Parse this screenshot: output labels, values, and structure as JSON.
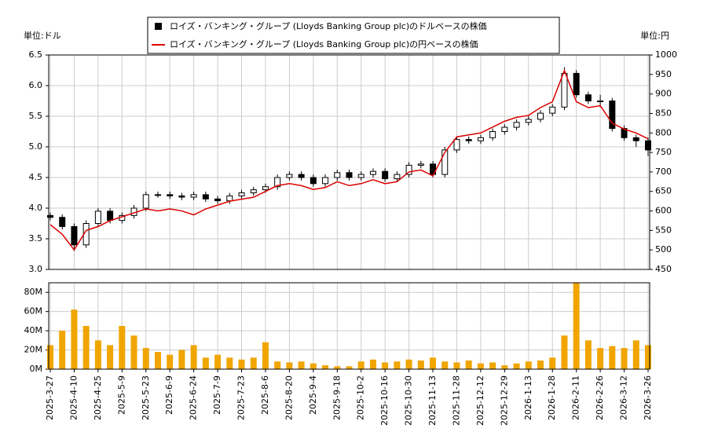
{
  "chart_data": [
    {
      "type": "candlestick",
      "legend": "top",
      "grid": true,
      "y_unit": "単位:ドル",
      "y2_unit": "単位:円",
      "x": [
        "2025-3-27",
        "2025-4-3",
        "2025-4-10",
        "2025-4-17",
        "2025-4-25",
        "2025-5-2",
        "2025-5-9",
        "2025-5-16",
        "2025-5-23",
        "2025-6-2",
        "2025-6-9",
        "2025-6-16",
        "2025-6-24",
        "2025-7-1",
        "2025-7-9",
        "2025-7-16",
        "2025-7-23",
        "2025-7-30",
        "2025-8-6",
        "2025-8-13",
        "2025-8-20",
        "2025-8-27",
        "2025-9-4",
        "2025-9-11",
        "2025-9-18",
        "2025-9-25",
        "2025-10-2",
        "2025-10-9",
        "2025-10-16",
        "2025-10-23",
        "2025-10-30",
        "2025-11-6",
        "2025-11-13",
        "2025-11-20",
        "2025-11-28",
        "2025-12-5",
        "2025-12-12",
        "2025-12-19",
        "2025-12-29",
        "2026-1-6",
        "2026-1-13",
        "2026-1-21",
        "2026-1-28",
        "2026-2-4",
        "2026-2-11",
        "2026-2-18",
        "2026-2-26",
        "2026-3-5",
        "2026-3-12",
        "2026-3-19",
        "2026-3-26"
      ],
      "series": [
        {
          "name": "ロイズ・バンキング・グループ (Lloyds Banking Group plc)のドルベースの株価",
          "color": "#000000",
          "open": [
            3.88,
            3.85,
            3.7,
            3.4,
            3.75,
            3.95,
            3.8,
            3.88,
            4.0,
            4.22,
            4.22,
            4.2,
            4.18,
            4.22,
            4.15,
            4.12,
            4.2,
            4.25,
            4.3,
            4.35,
            4.5,
            4.55,
            4.5,
            4.4,
            4.5,
            4.58,
            4.5,
            4.55,
            4.6,
            4.48,
            4.55,
            4.7,
            4.72,
            4.55,
            4.95,
            5.12,
            5.1,
            5.15,
            5.25,
            5.32,
            5.4,
            5.45,
            5.55,
            5.65,
            6.2,
            5.85,
            5.75,
            5.75,
            5.3,
            5.15,
            5.1
          ],
          "high": [
            3.93,
            3.9,
            3.75,
            3.8,
            4.0,
            4.0,
            3.93,
            4.05,
            4.27,
            4.27,
            4.27,
            4.25,
            4.27,
            4.27,
            4.2,
            4.25,
            4.3,
            4.35,
            4.4,
            4.55,
            4.6,
            4.6,
            4.55,
            4.55,
            4.63,
            4.63,
            4.6,
            4.65,
            4.65,
            4.6,
            4.75,
            4.77,
            4.77,
            5.0,
            5.17,
            5.17,
            5.2,
            5.3,
            5.37,
            5.45,
            5.5,
            5.6,
            5.7,
            6.3,
            6.25,
            5.9,
            5.85,
            5.8,
            5.35,
            5.2,
            5.15
          ],
          "low": [
            3.8,
            3.65,
            3.3,
            3.35,
            3.7,
            3.75,
            3.75,
            3.83,
            3.95,
            4.17,
            4.15,
            4.13,
            4.13,
            4.1,
            4.07,
            4.07,
            4.15,
            4.2,
            4.25,
            4.3,
            4.45,
            4.45,
            4.35,
            4.35,
            4.45,
            4.45,
            4.45,
            4.5,
            4.43,
            4.43,
            4.5,
            4.65,
            4.5,
            4.5,
            4.9,
            5.05,
            5.05,
            5.1,
            5.2,
            5.27,
            5.35,
            5.4,
            5.5,
            5.6,
            5.8,
            5.7,
            5.65,
            5.25,
            5.1,
            5.0,
            4.85
          ],
          "close": [
            3.85,
            3.7,
            3.4,
            3.75,
            3.95,
            3.8,
            3.88,
            4.0,
            4.22,
            4.22,
            4.2,
            4.18,
            4.22,
            4.15,
            4.12,
            4.2,
            4.25,
            4.3,
            4.35,
            4.5,
            4.55,
            4.5,
            4.4,
            4.5,
            4.58,
            4.5,
            4.55,
            4.6,
            4.48,
            4.55,
            4.7,
            4.72,
            4.55,
            4.95,
            5.12,
            5.1,
            5.15,
            5.25,
            5.32,
            5.4,
            5.45,
            5.55,
            5.65,
            6.2,
            5.85,
            5.75,
            5.75,
            5.3,
            5.15,
            5.1,
            4.95
          ]
        },
        {
          "name": "ロイズ・バンキング・グループ (Lloyds Banking Group plc)の円ベースの株価",
          "color": "#dd0000",
          "axis": "y2",
          "values": [
            565,
            540,
            500,
            550,
            560,
            575,
            585,
            595,
            605,
            600,
            605,
            600,
            590,
            605,
            615,
            625,
            630,
            635,
            650,
            665,
            670,
            665,
            655,
            660,
            675,
            665,
            670,
            680,
            670,
            675,
            700,
            705,
            690,
            750,
            790,
            795,
            800,
            815,
            830,
            840,
            845,
            865,
            880,
            960,
            880,
            865,
            870,
            825,
            810,
            800,
            785
          ]
        }
      ],
      "ylim": [
        3,
        6.5
      ],
      "yticks": [
        {
          "value": 3,
          "label": "3.0"
        },
        3.5,
        {
          "value": 4,
          "label": "4.0"
        },
        4.5,
        {
          "value": 5,
          "label": "5.0"
        },
        5.5,
        {
          "value": 6,
          "label": "6.0"
        },
        6.5
      ],
      "y2lim": [
        450,
        1000
      ],
      "y2ticks": [
        450,
        500,
        550,
        600,
        650,
        700,
        750,
        800,
        850,
        900,
        950,
        1000
      ]
    },
    {
      "type": "bar",
      "grid": true,
      "color": "#f0a500",
      "x": [
        "2025-3-27",
        "2025-4-3",
        "2025-4-10",
        "2025-4-17",
        "2025-4-25",
        "2025-5-2",
        "2025-5-9",
        "2025-5-16",
        "2025-5-23",
        "2025-6-2",
        "2025-6-9",
        "2025-6-16",
        "2025-6-24",
        "2025-7-1",
        "2025-7-9",
        "2025-7-16",
        "2025-7-23",
        "2025-7-30",
        "2025-8-6",
        "2025-8-13",
        "2025-8-20",
        "2025-8-27",
        "2025-9-4",
        "2025-9-11",
        "2025-9-18",
        "2025-9-25",
        "2025-10-2",
        "2025-10-9",
        "2025-10-16",
        "2025-10-23",
        "2025-10-30",
        "2025-11-6",
        "2025-11-13",
        "2025-11-20",
        "2025-11-28",
        "2025-12-5",
        "2025-12-12",
        "2025-12-19",
        "2025-12-29",
        "2026-1-6",
        "2026-1-13",
        "2026-1-21",
        "2026-1-28",
        "2026-2-4",
        "2026-2-11",
        "2026-2-18",
        "2026-2-26",
        "2026-3-5",
        "2026-3-12",
        "2026-3-19",
        "2026-3-26"
      ],
      "values": [
        25000000,
        40000000,
        62000000,
        45000000,
        30000000,
        25000000,
        45000000,
        35000000,
        22000000,
        18000000,
        15000000,
        20000000,
        25000000,
        12000000,
        15000000,
        12000000,
        10000000,
        12000000,
        28000000,
        8000000,
        7000000,
        8000000,
        6000000,
        4000000,
        3000000,
        3000000,
        8000000,
        10000000,
        7000000,
        8000000,
        10000000,
        9000000,
        12000000,
        8000000,
        7000000,
        9000000,
        6000000,
        7000000,
        4000000,
        6000000,
        8000000,
        9000000,
        12000000,
        35000000,
        90000000,
        30000000,
        22000000,
        24000000,
        22000000,
        30000000,
        25000000
      ],
      "ylim": [
        0,
        90000000
      ],
      "yticks": [
        {
          "value": 0,
          "label": "0M"
        },
        {
          "value": 20000000,
          "label": "20M"
        },
        {
          "value": 40000000,
          "label": "40M"
        },
        {
          "value": 60000000,
          "label": "60M"
        },
        {
          "value": 80000000,
          "label": "80M"
        }
      ],
      "xticks": [
        "2025-3-27",
        "2025-4-10",
        "2025-4-25",
        "2025-5-9",
        "2025-5-23",
        "2025-6-9",
        "2025-6-24",
        "2025-7-9",
        "2025-7-23",
        "2025-8-6",
        "2025-8-20",
        "2025-9-4",
        "2025-9-18",
        "2025-10-2",
        "2025-10-16",
        "2025-10-30",
        "2025-11-13",
        "2025-11-28",
        "2025-12-12",
        "2025-12-29",
        "2026-1-13",
        "2026-1-28",
        "2026-2-11",
        "2026-2-26",
        "2026-3-12",
        "2026-3-26"
      ]
    }
  ]
}
